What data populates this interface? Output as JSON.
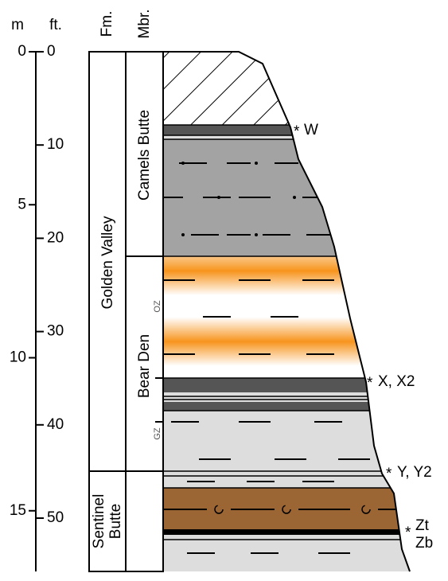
{
  "header": {
    "m": "m",
    "ft": "ft.",
    "fm": "Fm.",
    "mbr": "Mbr."
  },
  "m_ticks": [
    0,
    5,
    10,
    15
  ],
  "ft_ticks": [
    0,
    10,
    20,
    30,
    40,
    50
  ],
  "formations": {
    "golden_valley": "Golden Valley",
    "sentinel_butte": [
      "Sentinel",
      "Butte"
    ]
  },
  "members": {
    "camels_butte": "Camels Butte",
    "bear_den": "Bear Den"
  },
  "zones": {
    "oz": "OZ",
    "gz": "GZ"
  },
  "marker": "*",
  "samples": {
    "w": "W",
    "x": "X, X2",
    "y": "Y, Y2",
    "zt": "Zt",
    "zb": "Zb"
  }
}
